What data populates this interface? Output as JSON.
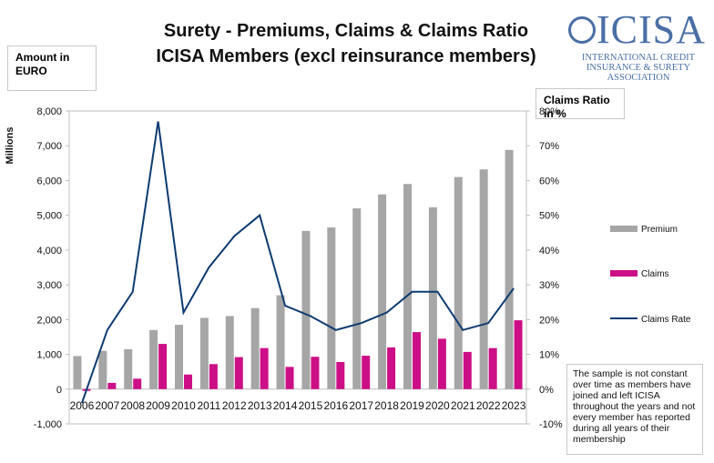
{
  "title_line1": "Surety - Premiums, Claims & Claims Ratio",
  "title_line2": "ICISA Members (excl reinsurance members)",
  "logo": {
    "main": "ICISA",
    "line1": "INTERNATIONAL CREDIT",
    "line2": "INSURANCE & SURETY",
    "line3": "ASSOCIATION"
  },
  "left_box": "Amount in EURO",
  "right_box": "Claims Ratio in %",
  "note": "The sample is not constant over time as members have joined and left ICISA throughout the years and not every member has reported during all years of their membership",
  "colors": {
    "premium": "#a6a6a6",
    "claims": "#cc0f86",
    "rate": "#0d3b70"
  },
  "chart_data": {
    "type": "bar",
    "categories": [
      "2006",
      "2007",
      "2008",
      "2009",
      "2010",
      "2011",
      "2012",
      "2013",
      "2014",
      "2015",
      "2016",
      "2017",
      "2018",
      "2019",
      "2020",
      "2021",
      "2022",
      "2023"
    ],
    "ylabel": "Millions",
    "ylim": [
      -1000,
      8000
    ],
    "yticks": [
      "-1,000",
      "0",
      "1,000",
      "2,000",
      "3,000",
      "4,000",
      "5,000",
      "6,000",
      "7,000",
      "8,000"
    ],
    "y2lim": [
      -10,
      80
    ],
    "y2ticks": [
      "-10%",
      "0%",
      "10%",
      "20%",
      "30%",
      "40%",
      "50%",
      "60%",
      "70%",
      "80%"
    ],
    "series": [
      {
        "name": "Premium",
        "type": "bar",
        "axis": "left",
        "values": [
          950,
          1100,
          1150,
          1700,
          1850,
          2050,
          2100,
          2330,
          2700,
          4550,
          4650,
          5200,
          5600,
          5900,
          5230,
          6100,
          6320,
          6880
        ]
      },
      {
        "name": "Claims",
        "type": "bar",
        "axis": "left",
        "values": [
          -50,
          180,
          300,
          1300,
          420,
          720,
          920,
          1180,
          640,
          930,
          780,
          960,
          1200,
          1640,
          1450,
          1070,
          1180,
          1980
        ]
      },
      {
        "name": "Claims Rate",
        "type": "line",
        "axis": "right",
        "values": [
          -4,
          17,
          28,
          77,
          22,
          35,
          44,
          50,
          24,
          21,
          17,
          19,
          22,
          28,
          28,
          17,
          19,
          29
        ]
      }
    ],
    "legend_position": "right",
    "grid": false
  }
}
